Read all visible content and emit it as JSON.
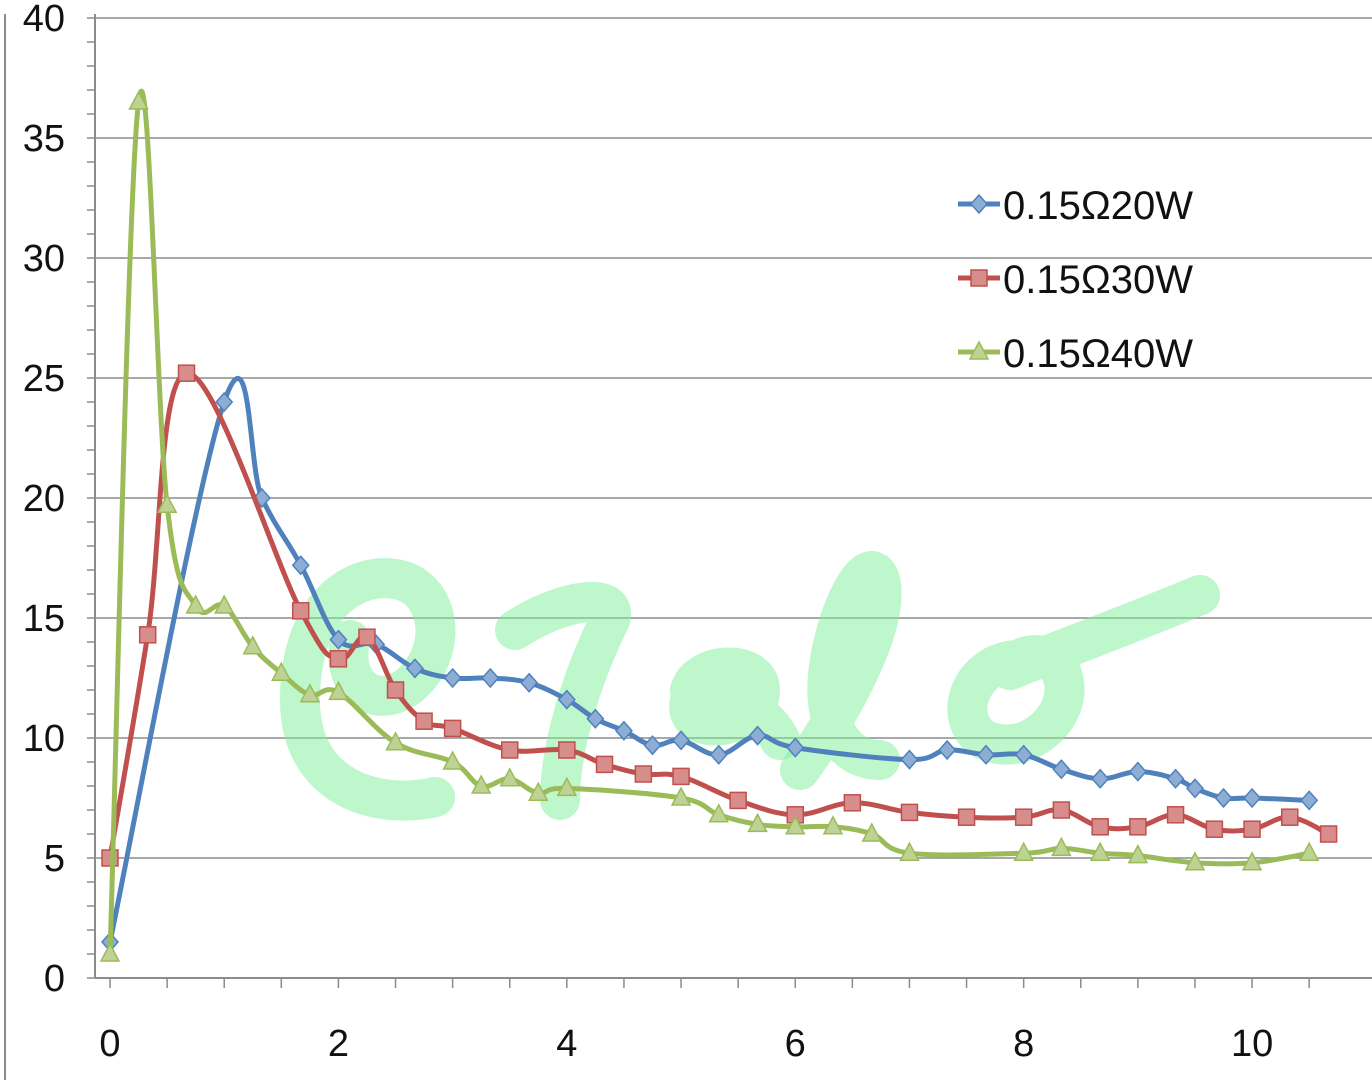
{
  "chart_data": {
    "type": "line",
    "title": "",
    "xlabel": "",
    "ylabel": "",
    "xlim": [
      0,
      11.05
    ],
    "ylim": [
      0,
      40
    ],
    "x_ticks": [
      0,
      2,
      4,
      6,
      8,
      10
    ],
    "y_ticks": [
      0,
      5,
      10,
      15,
      20,
      25,
      30,
      35,
      40
    ],
    "grid": {
      "horizontal": true,
      "vertical": false
    },
    "legend_position": "top-right",
    "series": [
      {
        "name": "0.15Ω20W",
        "color": "#4f81bd",
        "marker": "diamond",
        "x": [
          0,
          1.0,
          1.33,
          1.67,
          2.0,
          2.33,
          2.67,
          3.0,
          3.33,
          3.67,
          4.0,
          4.25,
          4.5,
          4.75,
          5.0,
          5.33,
          5.67,
          6.0,
          7.0,
          7.33,
          7.67,
          8.0,
          8.33,
          8.67,
          9.0,
          9.33,
          9.5,
          9.75,
          10.0,
          10.5
        ],
        "y": [
          1.5,
          24.0,
          20.0,
          17.2,
          14.1,
          13.9,
          12.9,
          12.5,
          12.5,
          12.3,
          11.6,
          10.8,
          10.3,
          9.7,
          9.9,
          9.3,
          10.1,
          9.6,
          9.1,
          9.5,
          9.3,
          9.3,
          8.7,
          8.3,
          8.6,
          8.3,
          7.9,
          7.5,
          7.5,
          7.4
        ]
      },
      {
        "name": "0.15Ω30W",
        "color": "#c0504d",
        "marker": "square",
        "x": [
          0,
          0.33,
          0.67,
          1.67,
          2.0,
          2.25,
          2.5,
          2.75,
          3.0,
          3.5,
          4.0,
          4.33,
          4.67,
          5.0,
          5.5,
          6.0,
          6.5,
          7.0,
          7.5,
          8.0,
          8.33,
          8.67,
          9.0,
          9.33,
          9.67,
          10.0,
          10.33,
          10.67
        ],
        "y": [
          5.0,
          14.3,
          25.2,
          15.3,
          13.3,
          14.2,
          12.0,
          10.7,
          10.4,
          9.5,
          9.5,
          8.9,
          8.5,
          8.4,
          7.4,
          6.8,
          7.3,
          6.9,
          6.7,
          6.7,
          7.0,
          6.3,
          6.3,
          6.8,
          6.2,
          6.2,
          6.7,
          6.0
        ]
      },
      {
        "name": "0.15Ω40W",
        "color": "#9bbb59",
        "marker": "triangle",
        "x": [
          0,
          0.25,
          0.5,
          0.75,
          1.0,
          1.25,
          1.5,
          1.75,
          2.0,
          2.5,
          3.0,
          3.25,
          3.5,
          3.75,
          4.0,
          5.0,
          5.33,
          5.67,
          6.0,
          6.33,
          6.67,
          7.0,
          8.0,
          8.33,
          8.67,
          9.0,
          9.5,
          10.0,
          10.5
        ],
        "y": [
          1.0,
          36.5,
          19.7,
          15.5,
          15.5,
          13.8,
          12.7,
          11.8,
          11.9,
          9.8,
          9.0,
          8.0,
          8.3,
          7.7,
          7.9,
          7.5,
          6.8,
          6.4,
          6.3,
          6.3,
          6.0,
          5.2,
          5.2,
          5.4,
          5.2,
          5.1,
          4.8,
          4.8,
          5.2
        ]
      }
    ]
  }
}
